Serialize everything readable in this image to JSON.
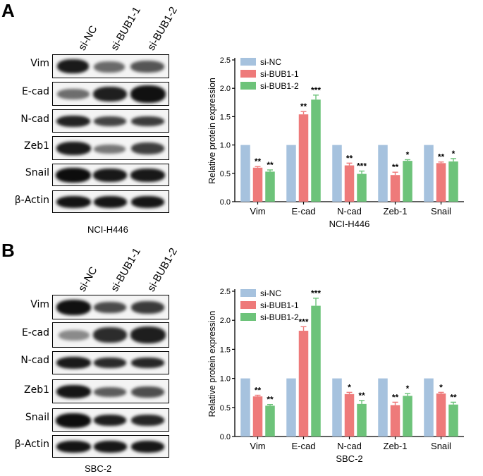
{
  "panels": [
    {
      "letter": "A",
      "lanes": [
        "si-NC",
        "si-BUB1-1",
        "si-BUB1-2"
      ],
      "proteins": [
        "Vim",
        "E-cad",
        "N-cad",
        "Zeb1",
        "Snail",
        "β-Actin"
      ],
      "cell_line": "NCI-H446"
    },
    {
      "letter": "B",
      "lanes": [
        "si-NC",
        "si-BUB1-1",
        "si-BUB1-2"
      ],
      "proteins": [
        "Vim",
        "E-cad",
        "N-cad",
        "Zeb1",
        "Snail",
        "β-Actin"
      ],
      "cell_line": "SBC-2"
    }
  ],
  "chart_data": [
    {
      "type": "bar",
      "ylabel": "Relative protein expression",
      "xlabel": "NCI-H446",
      "ylim": [
        0,
        2.5
      ],
      "yticks": [
        "0.0",
        "0.5",
        "1.0",
        "1.5",
        "2.0",
        "2.5"
      ],
      "categories": [
        "Vim",
        "E-cad",
        "N-cad",
        "Zeb-1",
        "Snail"
      ],
      "legend_position": "top-left",
      "series": [
        {
          "name": "si-NC",
          "color": "#a6c2de",
          "values": [
            1,
            1,
            1,
            1,
            1
          ],
          "errors": [
            0,
            0,
            0,
            0,
            0
          ],
          "sig": [
            "",
            "",
            "",
            "",
            ""
          ]
        },
        {
          "name": "si-BUB1-1",
          "color": "#ee7a7a",
          "values": [
            0.6,
            1.54,
            0.64,
            0.47,
            0.68
          ],
          "errors": [
            0.02,
            0.05,
            0.04,
            0.05,
            0.02
          ],
          "sig": [
            "**",
            "**",
            "**",
            "**",
            "**"
          ]
        },
        {
          "name": "si-BUB1-2",
          "color": "#6dc37a",
          "values": [
            0.53,
            1.8,
            0.49,
            0.72,
            0.71
          ],
          "errors": [
            0.03,
            0.08,
            0.05,
            0.02,
            0.05
          ],
          "sig": [
            "**",
            "***",
            "***",
            "*",
            "*"
          ]
        }
      ]
    },
    {
      "type": "bar",
      "ylabel": "Relative protein expression",
      "xlabel": "SBC-2",
      "ylim": [
        0,
        2.5
      ],
      "yticks": [
        "0.0",
        "0.5",
        "1.0",
        "1.5",
        "2.0",
        "2.5"
      ],
      "categories": [
        "Vim",
        "E-cad",
        "N-cad",
        "Zeb-1",
        "Snail"
      ],
      "legend_position": "top-left",
      "series": [
        {
          "name": "si-NC",
          "color": "#a6c2de",
          "values": [
            1,
            1,
            1,
            1,
            1
          ],
          "errors": [
            0,
            0,
            0,
            0,
            0
          ],
          "sig": [
            "",
            "",
            "",
            "",
            ""
          ]
        },
        {
          "name": "si-BUB1-1",
          "color": "#ee7a7a",
          "values": [
            0.69,
            1.82,
            0.73,
            0.54,
            0.74
          ],
          "errors": [
            0.02,
            0.07,
            0.03,
            0.05,
            0.02
          ],
          "sig": [
            "**",
            "***",
            "*",
            "**",
            "*"
          ]
        },
        {
          "name": "si-BUB1-2",
          "color": "#6dc37a",
          "values": [
            0.53,
            2.25,
            0.56,
            0.7,
            0.55
          ],
          "errors": [
            0.02,
            0.13,
            0.06,
            0.04,
            0.04
          ],
          "sig": [
            "**",
            "***",
            "**",
            "*",
            "**"
          ]
        }
      ]
    }
  ]
}
